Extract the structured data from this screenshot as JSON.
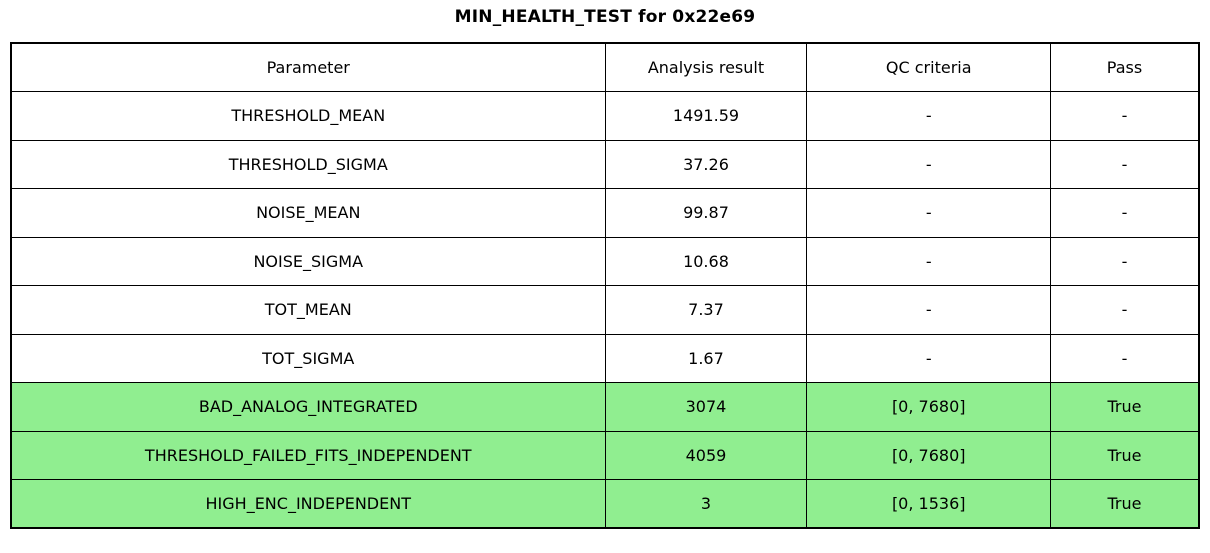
{
  "title": "MIN_HEALTH_TEST for 0x22e69",
  "colors": {
    "highlight_green": "#90EE90",
    "border": "#000000",
    "background": "#ffffff",
    "text": "#000000"
  },
  "chart_data": {
    "type": "table",
    "title": "MIN_HEALTH_TEST for 0x22e69",
    "columns": [
      "Parameter",
      "Analysis result",
      "QC criteria",
      "Pass"
    ],
    "rows": [
      [
        "THRESHOLD_MEAN",
        "1491.59",
        "-",
        "-"
      ],
      [
        "THRESHOLD_SIGMA",
        "37.26",
        "-",
        "-"
      ],
      [
        "NOISE_MEAN",
        "99.87",
        "-",
        "-"
      ],
      [
        "NOISE_SIGMA",
        "10.68",
        "-",
        "-"
      ],
      [
        "TOT_MEAN",
        "7.37",
        "-",
        "-"
      ],
      [
        "TOT_SIGMA",
        "1.67",
        "-",
        "-"
      ],
      [
        "BAD_ANALOG_INTEGRATED",
        "3074",
        "[0, 7680]",
        "True"
      ],
      [
        "THRESHOLD_FAILED_FITS_INDEPENDENT",
        "4059",
        "[0, 7680]",
        "True"
      ],
      [
        "HIGH_ENC_INDEPENDENT",
        "3",
        "[0, 1536]",
        "True"
      ]
    ],
    "row_highlight": [
      false,
      false,
      false,
      false,
      false,
      false,
      true,
      true,
      true
    ],
    "highlight_color": "#90EE90",
    "notes": "Rows with a Pass value of True have a light green background; dash cells indicate no QC criteria applied."
  }
}
